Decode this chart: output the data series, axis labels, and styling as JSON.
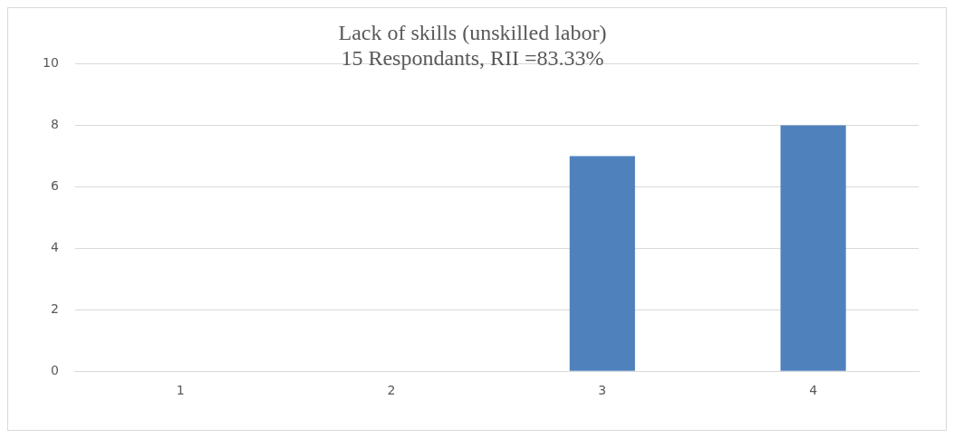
{
  "chart_data": {
    "type": "bar",
    "title": "Lack of skills (unskilled labor)",
    "subtitle": "15 Respondants, RII =83.33%",
    "categories": [
      "1",
      "2",
      "3",
      "4"
    ],
    "values": [
      0,
      0,
      7,
      8
    ],
    "color": "#4f81bd",
    "ylim": [
      0,
      10
    ],
    "yticks": [
      0,
      2,
      4,
      6,
      8,
      10
    ],
    "grid": "y",
    "legend": false
  }
}
